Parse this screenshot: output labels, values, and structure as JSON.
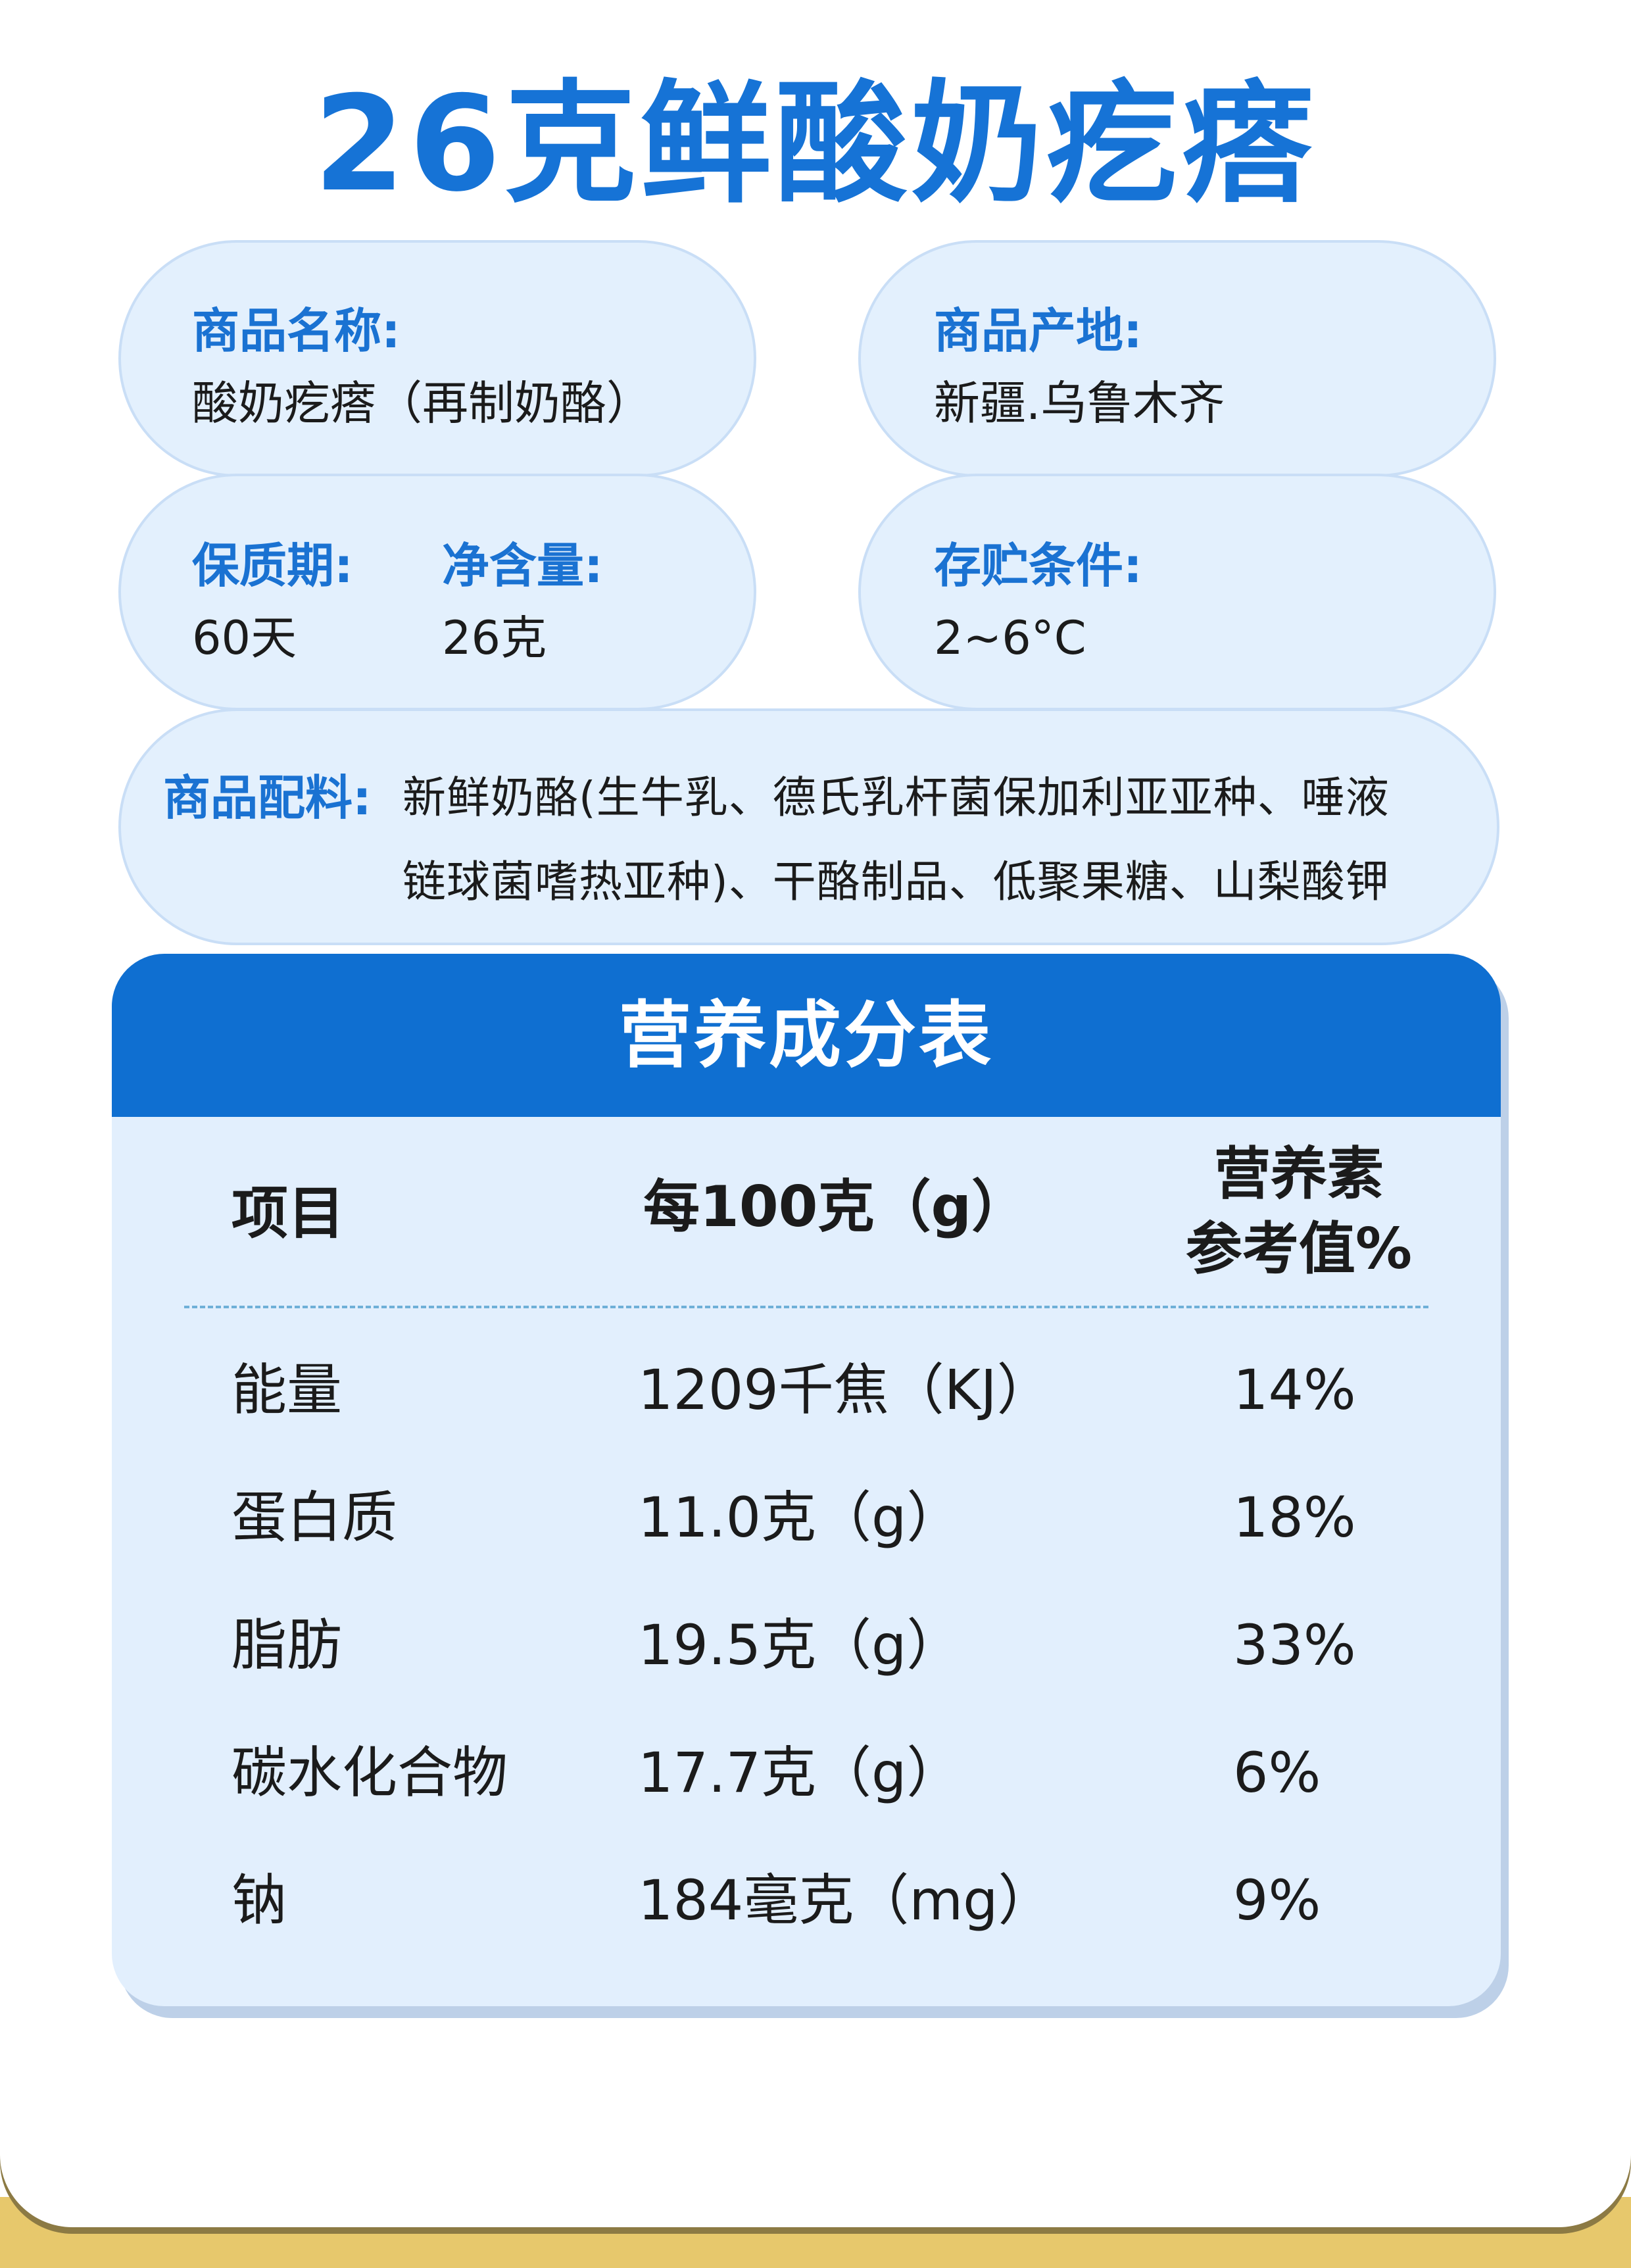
{
  "title": "26克鲜酸奶疙瘩",
  "product_name": {
    "label": "商品名称:",
    "value": "酸奶疙瘩（再制奶酪）"
  },
  "origin": {
    "label": "商品产地:",
    "value": "新疆.乌鲁木齐"
  },
  "shelf_life": {
    "label": "保质期:",
    "value": "60天"
  },
  "net_content": {
    "label": "净含量:",
    "value": "26克"
  },
  "storage": {
    "label": "存贮条件:",
    "value": "2~6°C"
  },
  "ingredients": {
    "label": "商品配料:",
    "line1": "新鲜奶酪(生牛乳、德氏乳杆菌保加利亚亚种、唾液",
    "line2": "链球菌嗜热亚种)、干酪制品、低聚果糖、山梨酸钾"
  },
  "nutrition": {
    "title": "营养成分表",
    "headers": {
      "item": "项目",
      "per100": "每100克（g）",
      "nrv_line1": "营养素",
      "nrv_line2": "参考值%"
    },
    "rows": [
      {
        "item": "能量",
        "per100": "1209千焦（KJ）",
        "nrv": "14%"
      },
      {
        "item": "蛋白质",
        "per100": "11.0克（g）",
        "nrv": "18%"
      },
      {
        "item": "脂肪",
        "per100": "19.5克（g）",
        "nrv": "33%"
      },
      {
        "item": "碳水化合物",
        "per100": "17.7克（g）",
        "nrv": "6%"
      },
      {
        "item": "钠",
        "per100": "184毫克（mg）",
        "nrv": "9%"
      }
    ]
  }
}
